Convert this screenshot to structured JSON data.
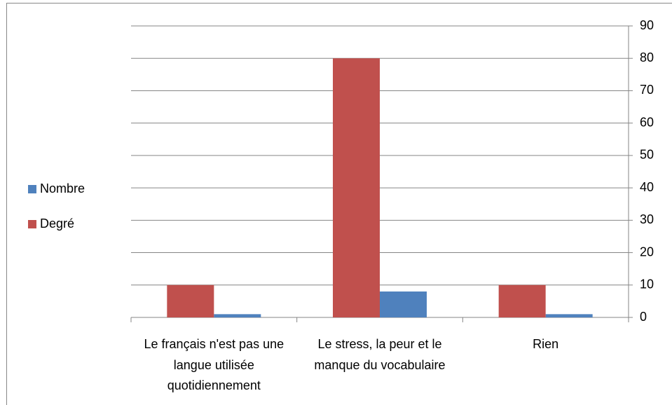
{
  "chart_data": {
    "type": "bar",
    "categories": [
      "Le français n'est pas une langue utilisée quotidiennement",
      "Le stress, la peur et le manque du vocabulaire",
      "Rien"
    ],
    "series": [
      {
        "name": "Nombre",
        "color": "#4f81bd",
        "values": [
          1,
          8,
          1
        ]
      },
      {
        "name": "Degré",
        "color": "#c0504d",
        "values": [
          10,
          80,
          10
        ]
      }
    ],
    "ylim": [
      0,
      90
    ],
    "yticks": [
      0,
      10,
      20,
      30,
      40,
      50,
      60,
      70,
      80,
      90
    ],
    "y_axis_side": "right",
    "legend": "left",
    "grid": true
  }
}
